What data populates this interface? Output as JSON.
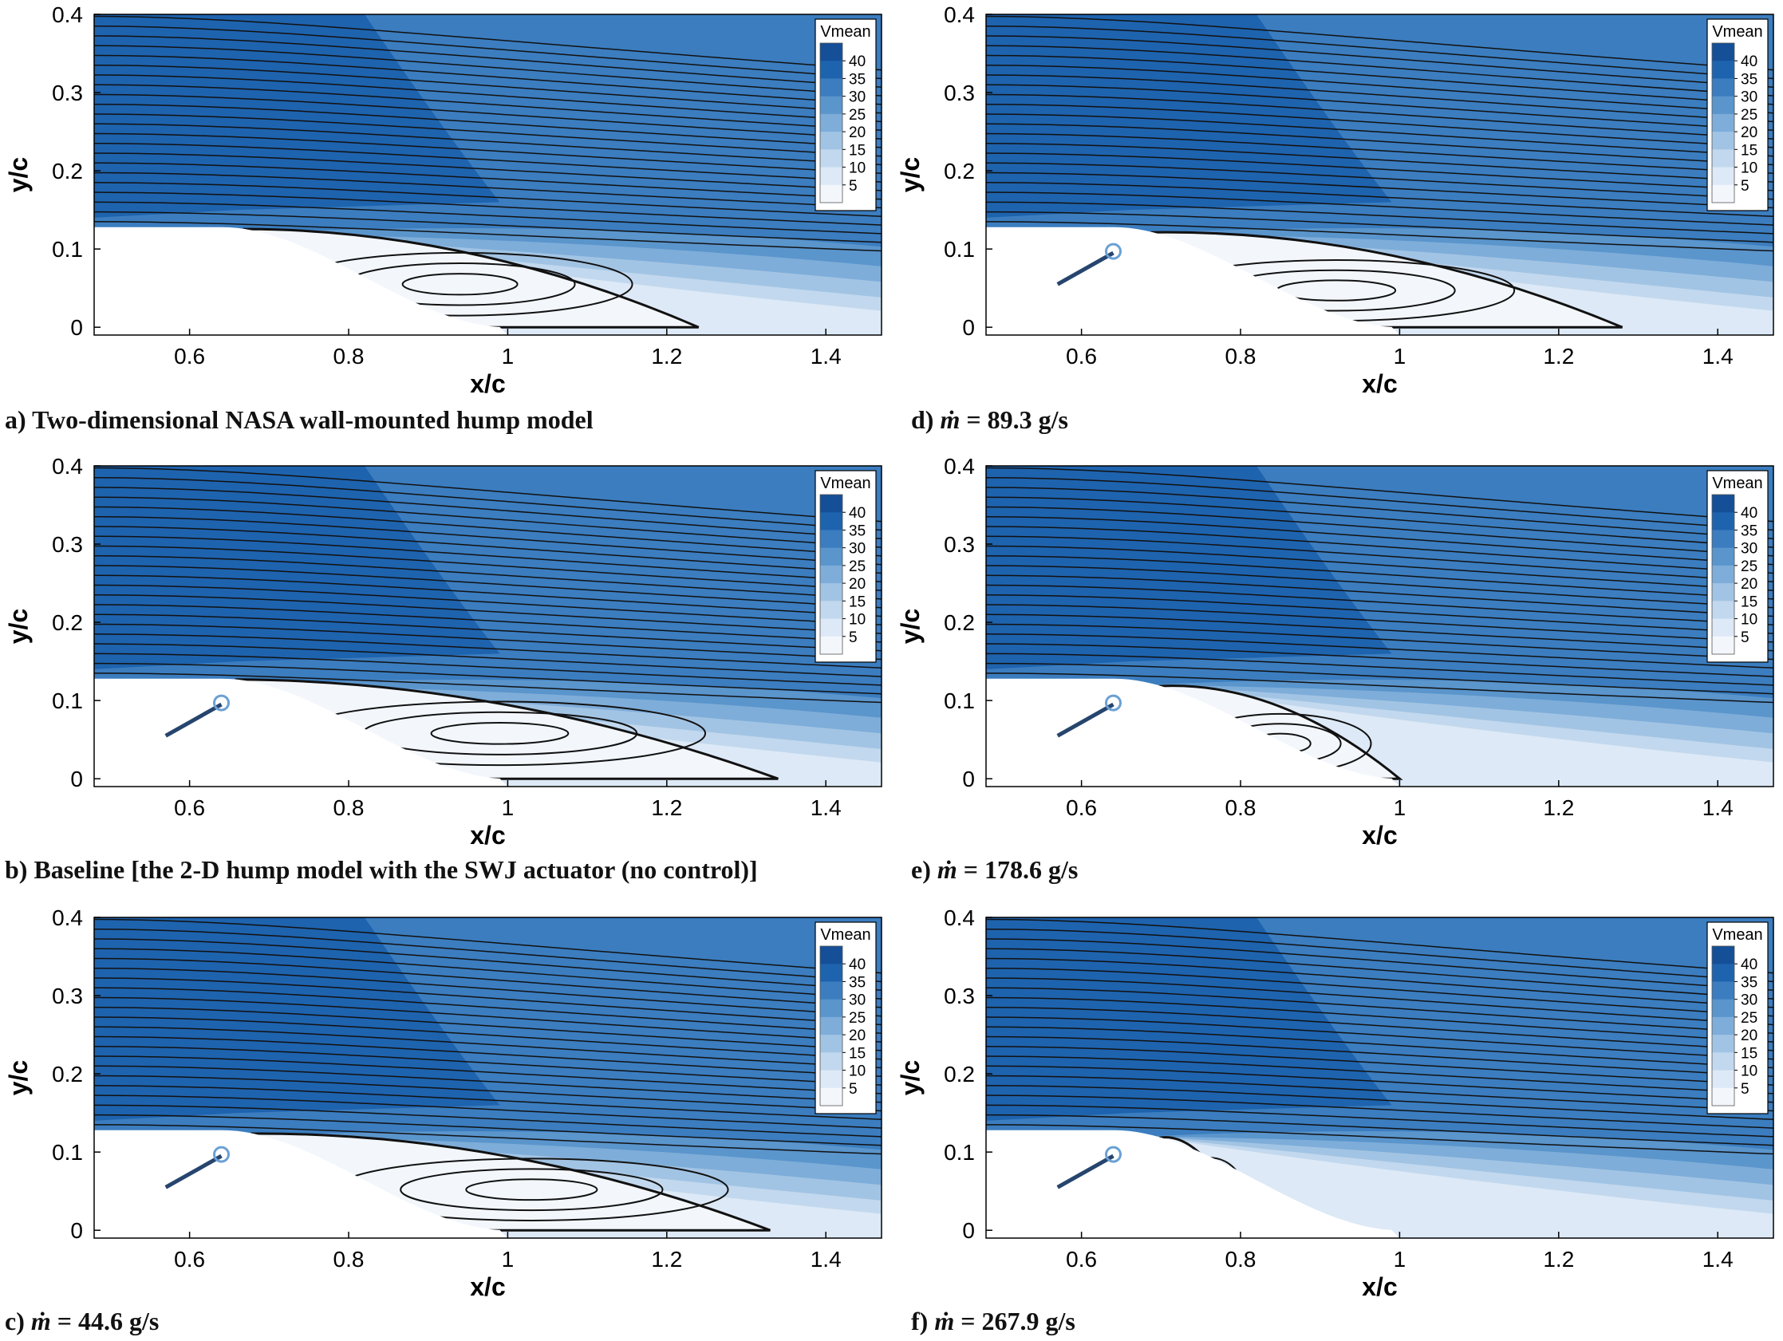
{
  "colors": {
    "c5": "#f3f7fc",
    "c10": "#dde9f6",
    "c15": "#c2d8ee",
    "c20": "#a2c4e4",
    "c25": "#7eadd9",
    "c30": "#5a95cc",
    "c35": "#3b7dbf",
    "c40": "#1e63ae",
    "c45": "#144f98",
    "hump": "#ffffff",
    "streamline": "#111111"
  },
  "legend": {
    "title": "Vmean",
    "levels": [
      "40",
      "35",
      "30",
      "25",
      "20",
      "15",
      "10",
      "5"
    ]
  },
  "axes": {
    "xlabel": "x/c",
    "ylabel": "y/c",
    "xticks": [
      "0.6",
      "0.8",
      "1",
      "1.2",
      "1.4"
    ],
    "yticks": [
      "0",
      "0.1",
      "0.2",
      "0.3",
      "0.4"
    ],
    "xlim": [
      0.48,
      1.47
    ],
    "ylim": [
      -0.01,
      0.4
    ]
  },
  "chart_data": [
    {
      "type": "contour",
      "panel": "a",
      "caption_prefix": "a) ",
      "caption_text": "Two-dimensional NASA wall-mounted hump model",
      "actuator": false,
      "bubble": {
        "x_start": 0.67,
        "x_end": 1.24,
        "center_x": 0.94,
        "center_y": 0.055
      }
    },
    {
      "type": "contour",
      "panel": "b",
      "caption_prefix": "b) ",
      "caption_text": "Baseline [the 2-D hump model with the SWJ actuator (no control)]",
      "actuator": true,
      "bubble": {
        "x_start": 0.66,
        "x_end": 1.34,
        "center_x": 0.99,
        "center_y": 0.058
      }
    },
    {
      "type": "contour",
      "panel": "c",
      "caption_prefix": "c) ",
      "mdot_symbol": "ṁ",
      "caption_text": " = 44.6 g/s",
      "actuator": true,
      "bubble": {
        "x_start": 0.68,
        "x_end": 1.33,
        "center_x": 1.03,
        "center_y": 0.052
      }
    },
    {
      "type": "contour",
      "panel": "d",
      "caption_prefix": "d) ",
      "mdot_symbol": "ṁ",
      "caption_text": " = 89.3 g/s",
      "actuator": true,
      "bubble": {
        "x_start": 0.69,
        "x_end": 1.28,
        "center_x": 0.92,
        "center_y": 0.047
      }
    },
    {
      "type": "contour",
      "panel": "e",
      "caption_prefix": "e) ",
      "mdot_symbol": "ṁ",
      "caption_text": " = 178.6 g/s",
      "actuator": true,
      "bubble": {
        "x_start": 0.7,
        "x_end": 1.0,
        "center_x": 0.85,
        "center_y": 0.045
      }
    },
    {
      "type": "contour",
      "panel": "f",
      "caption_prefix": "f) ",
      "mdot_symbol": "ṁ",
      "caption_text": " = 267.9 g/s",
      "actuator": true,
      "bubble": {
        "x_start": 0.7,
        "x_end": 0.81,
        "center_x": 0.76,
        "center_y": 0.055
      }
    }
  ]
}
